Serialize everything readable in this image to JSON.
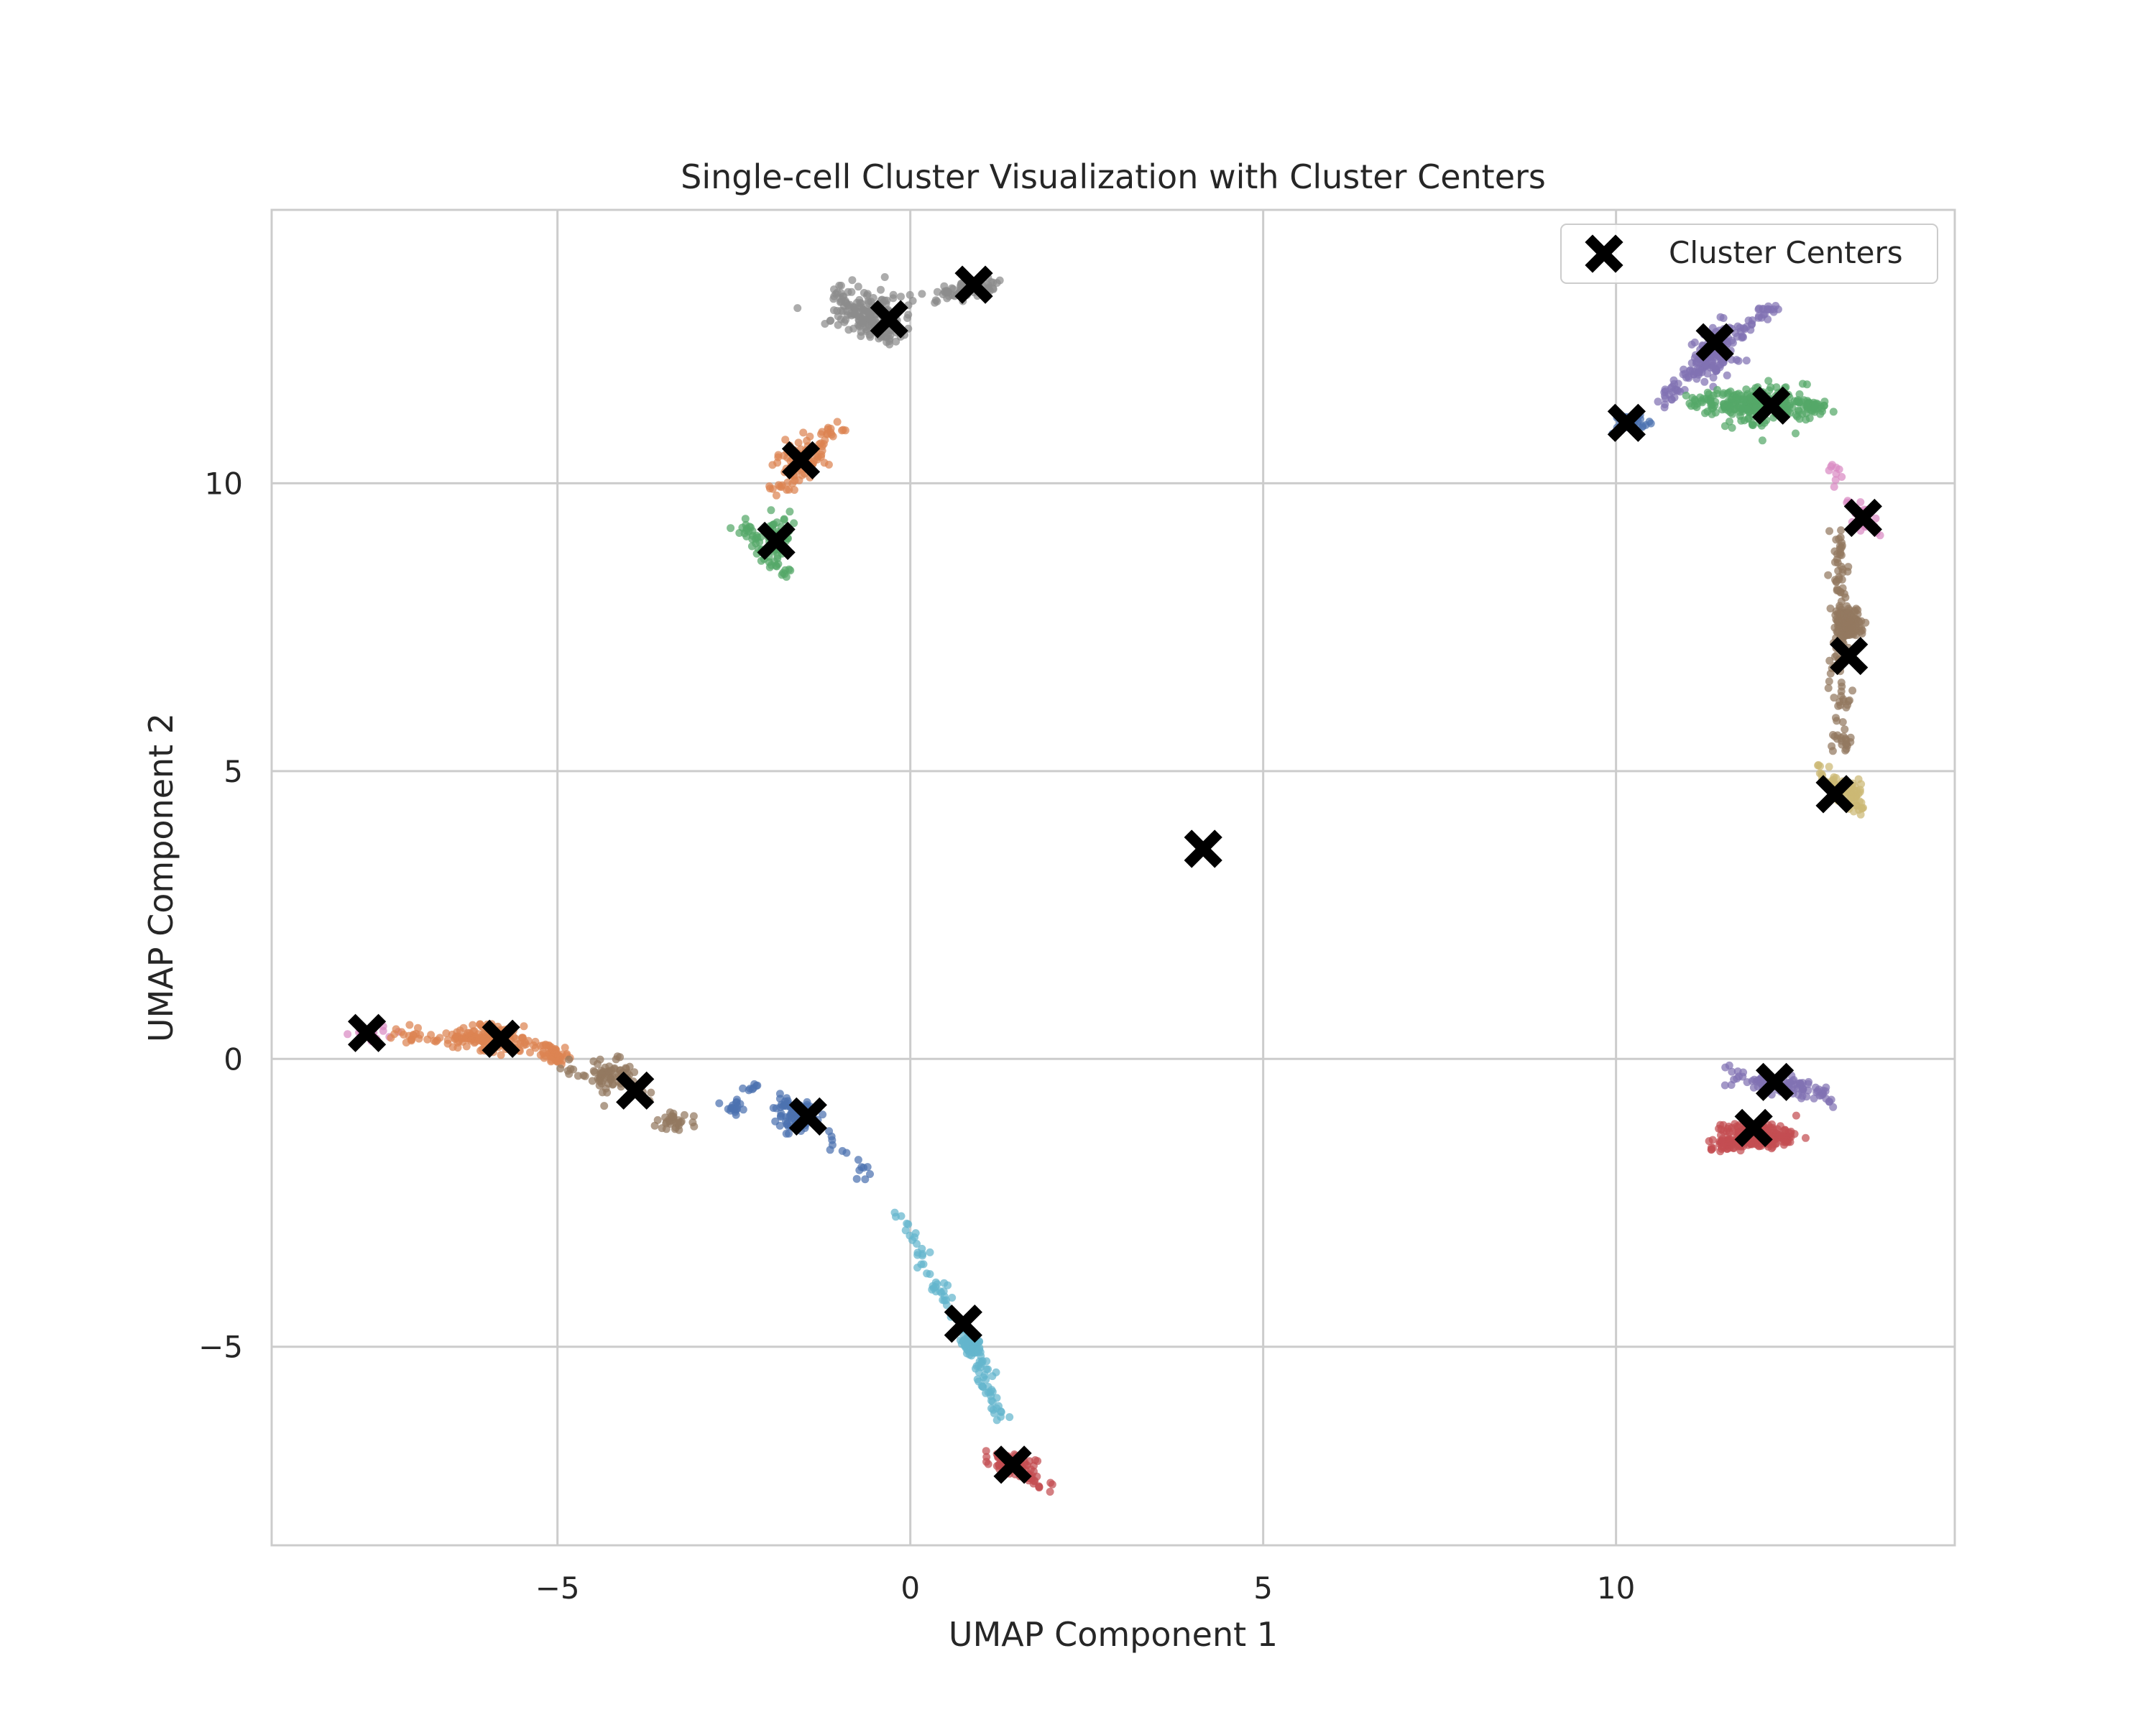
{
  "chart_data": {
    "type": "scatter",
    "title": "Single-cell Cluster Visualization with Cluster Centers",
    "xlabel": "UMAP Component 1",
    "ylabel": "UMAP Component 2",
    "xlim": [
      -9.05,
      14.8
    ],
    "ylim": [
      -8.45,
      14.75
    ],
    "xticks": [
      {
        "value": -5,
        "label": "−5"
      },
      {
        "value": 0,
        "label": "0"
      },
      {
        "value": 5,
        "label": "5"
      },
      {
        "value": 10,
        "label": "10"
      }
    ],
    "yticks": [
      {
        "value": -5,
        "label": "−5"
      },
      {
        "value": 0,
        "label": "0"
      },
      {
        "value": 5,
        "label": "5"
      },
      {
        "value": 10,
        "label": "10"
      }
    ],
    "grid": true,
    "legend": {
      "position": "upper-right",
      "entries": [
        "Cluster Centers"
      ]
    },
    "palette": {
      "blue": "#4c72b0",
      "orange": "#dd8452",
      "green": "#55a868",
      "red": "#c44e52",
      "purple": "#8172b3",
      "brown": "#937860",
      "pink": "#da8bc3",
      "gray": "#8c8c8c",
      "olive": "#ccb974",
      "cyan": "#64b5cd",
      "center": "#000000",
      "grid": "#cccccc"
    },
    "cell_clusters": [
      {
        "color": "gray",
        "segments": [
          [
            -1.1,
            13.3,
            -0.2,
            12.5
          ],
          [
            0.35,
            13.25,
            1.2,
            13.5
          ]
        ],
        "blob": [
          -0.55,
          12.95,
          0.6,
          0.45
        ],
        "n": 260
      },
      {
        "color": "orange",
        "segments": [
          [
            -1.95,
            9.8,
            -1.0,
            11.05
          ]
        ],
        "blob": [
          -1.55,
          10.35,
          0.3,
          0.45
        ],
        "n": 110
      },
      {
        "color": "green",
        "segments": [
          [
            -2.4,
            9.3,
            -1.75,
            8.35
          ]
        ],
        "blob": [
          -1.9,
          9.1,
          0.2,
          0.4
        ],
        "n": 90
      },
      {
        "color": "purple",
        "segments": [
          [
            10.6,
            11.4,
            12.2,
            13.1
          ]
        ],
        "blob": [
          11.4,
          12.3,
          0.35,
          0.45
        ],
        "n": 210
      },
      {
        "color": "green",
        "segments": [
          [
            11.0,
            11.45,
            13.0,
            11.3
          ]
        ],
        "blob": [
          12.1,
          11.35,
          0.65,
          0.35
        ],
        "n": 280
      },
      {
        "color": "blue",
        "segments": [
          [
            10.05,
            11.1,
            10.45,
            11.0
          ]
        ],
        "blob": [
          10.2,
          11.05,
          0.18,
          0.2
        ],
        "n": 30
      },
      {
        "color": "pink",
        "segments": [
          [
            13.0,
            10.3,
            13.7,
            9.1
          ]
        ],
        "blob": [
          13.45,
          9.35,
          0.15,
          0.2
        ],
        "n": 45
      },
      {
        "color": "brown",
        "segments": [
          [
            13.15,
            9.3,
            13.2,
            5.3
          ]
        ],
        "blob": [
          13.3,
          7.55,
          0.2,
          0.3
        ],
        "n": 240
      },
      {
        "color": "olive",
        "segments": [
          [
            12.9,
            5.0,
            13.5,
            4.3
          ]
        ],
        "blob": [
          13.25,
          4.7,
          0.28,
          0.25
        ],
        "n": 90
      },
      {
        "color": "purple",
        "segments": [
          [
            11.6,
            -0.25,
            13.1,
            -0.7
          ]
        ],
        "blob": [
          12.3,
          -0.45,
          0.45,
          0.15
        ],
        "n": 110
      },
      {
        "color": "red",
        "segments": [
          [
            11.35,
            -1.5,
            12.5,
            -1.35
          ]
        ],
        "blob": [
          11.95,
          -1.3,
          0.5,
          0.2
        ],
        "n": 240
      },
      {
        "color": "pink",
        "segments": [
          [
            -7.95,
            0.55,
            -7.4,
            0.4
          ]
        ],
        "blob": [
          -7.65,
          0.45,
          0.1,
          0.08
        ],
        "n": 25
      },
      {
        "color": "orange",
        "segments": [
          [
            -7.4,
            0.45,
            -5.2,
            0.15
          ],
          [
            -5.2,
            0.15,
            -4.9,
            0.0
          ]
        ],
        "blob": [
          -5.95,
          0.4,
          0.45,
          0.22
        ],
        "n": 210
      },
      {
        "color": "brown",
        "segments": [
          [
            -4.95,
            -0.1,
            -3.7,
            -0.6
          ],
          [
            -3.5,
            -1.05,
            -3.2,
            -1.15
          ]
        ],
        "blob": [
          -4.2,
          -0.3,
          0.35,
          0.3
        ],
        "n": 110
      },
      {
        "color": "blue",
        "segments": [
          [
            -2.4,
            -0.45,
            -1.5,
            -1.0
          ],
          [
            -1.3,
            -1.2,
            -0.55,
            -2.15
          ],
          [
            -2.55,
            -0.85,
            -2.45,
            -0.8
          ]
        ],
        "blob": [
          -1.6,
          -0.95,
          0.3,
          0.25
        ],
        "n": 130
      },
      {
        "color": "cyan",
        "segments": [
          [
            -0.25,
            -2.55,
            0.85,
            -4.9
          ],
          [
            0.85,
            -4.9,
            1.3,
            -6.3
          ]
        ],
        "blob": [
          0.85,
          -4.95,
          0.1,
          0.15
        ],
        "n": 240
      },
      {
        "color": "red",
        "segments": [
          [
            1.1,
            -6.9,
            1.95,
            -7.4
          ]
        ],
        "blob": [
          1.45,
          -7.0,
          0.3,
          0.12
        ],
        "n": 80
      }
    ],
    "cluster_centers": [
      {
        "x": -0.3,
        "y": 12.85
      },
      {
        "x": 0.9,
        "y": 13.45
      },
      {
        "x": -1.55,
        "y": 10.4
      },
      {
        "x": -1.9,
        "y": 9.0
      },
      {
        "x": 11.4,
        "y": 12.45
      },
      {
        "x": 12.2,
        "y": 11.35
      },
      {
        "x": 10.15,
        "y": 11.05
      },
      {
        "x": 13.5,
        "y": 9.4
      },
      {
        "x": 13.3,
        "y": 7.0
      },
      {
        "x": 13.1,
        "y": 4.6
      },
      {
        "x": 4.15,
        "y": 3.65
      },
      {
        "x": -7.7,
        "y": 0.45
      },
      {
        "x": -5.8,
        "y": 0.35
      },
      {
        "x": -3.9,
        "y": -0.55
      },
      {
        "x": -1.45,
        "y": -1.0
      },
      {
        "x": 0.75,
        "y": -4.6
      },
      {
        "x": 1.45,
        "y": -7.05
      },
      {
        "x": 12.25,
        "y": -0.4
      },
      {
        "x": 11.95,
        "y": -1.2
      }
    ]
  }
}
